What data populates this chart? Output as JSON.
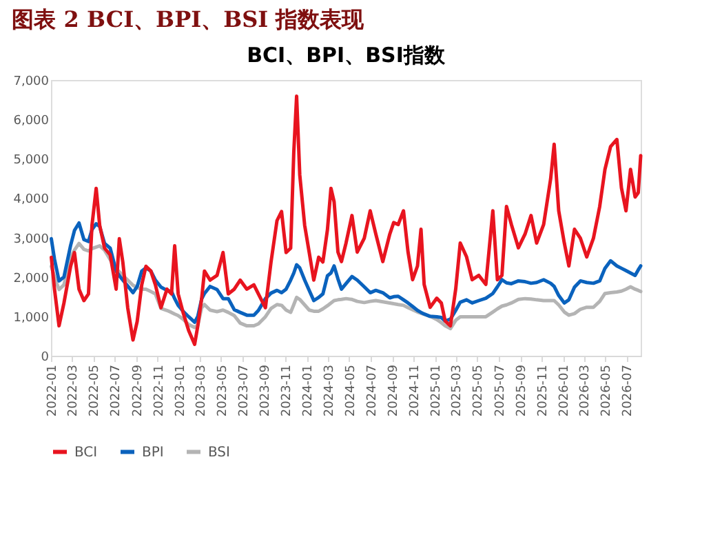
{
  "chart_data": {
    "type": "line",
    "title": "图表 2   BCI、BPI、BSI 指数表现",
    "subtitle": "BCI、BPI、BSI指数",
    "x": [
      "2022-01-02",
      "2022-01-11",
      "2022-01-24",
      "2022-02-07",
      "2022-02-26",
      "2022-03-09",
      "2022-03-22",
      "2022-04-05",
      "2022-04-18",
      "2022-04-28",
      "2022-05-10",
      "2022-05-20",
      "2022-06-03",
      "2022-06-19",
      "2022-07-06",
      "2022-07-15",
      "2022-07-25",
      "2022-08-08",
      "2022-08-23",
      "2022-09-04",
      "2022-09-17",
      "2022-09-29",
      "2022-10-13",
      "2022-10-26",
      "2022-11-11",
      "2022-11-28",
      "2022-12-11",
      "2022-12-20",
      "2022-12-30",
      "2023-01-13",
      "2023-01-29",
      "2023-02-15",
      "2023-02-24",
      "2023-03-07",
      "2023-03-15",
      "2023-03-31",
      "2023-04-20",
      "2023-05-07",
      "2023-05-22",
      "2023-06-08",
      "2023-06-25",
      "2023-07-14",
      "2023-08-03",
      "2023-08-16",
      "2023-09-05",
      "2023-09-21",
      "2023-10-08",
      "2023-10-21",
      "2023-11-03",
      "2023-11-16",
      "2023-11-25",
      "2023-12-03",
      "2023-12-12",
      "2023-12-26",
      "2024-01-08",
      "2024-01-21",
      "2024-02-04",
      "2024-02-16",
      "2024-02-29",
      "2024-03-10",
      "2024-03-19",
      "2024-03-30",
      "2024-04-09",
      "2024-04-22",
      "2024-05-09",
      "2024-05-24",
      "2024-06-13",
      "2024-06-30",
      "2024-07-16",
      "2024-08-05",
      "2024-08-25",
      "2024-09-05",
      "2024-09-18",
      "2024-10-03",
      "2024-10-16",
      "2024-10-29",
      "2024-11-12",
      "2024-11-22",
      "2024-12-01",
      "2024-12-18",
      "2025-01-06",
      "2025-01-19",
      "2025-01-30",
      "2025-02-14",
      "2025-03-01",
      "2025-03-14",
      "2025-04-01",
      "2025-04-17",
      "2025-05-06",
      "2025-05-26",
      "2025-06-15",
      "2025-06-28",
      "2025-07-11",
      "2025-07-24",
      "2025-08-07",
      "2025-08-27",
      "2025-09-15",
      "2025-10-02",
      "2025-10-18",
      "2025-11-07",
      "2025-11-27",
      "2025-12-07",
      "2025-12-20",
      "2026-01-05",
      "2026-01-18",
      "2026-02-03",
      "2026-02-20",
      "2026-03-10",
      "2026-03-29",
      "2026-04-16",
      "2026-05-01",
      "2026-05-17",
      "2026-06-04",
      "2026-06-17",
      "2026-06-30",
      "2026-07-13",
      "2026-07-26",
      "2026-08-04",
      "2026-08-11"
    ],
    "series": [
      {
        "name": "BCI",
        "color": "#e8141f",
        "values": [
          2500,
          1690,
          760,
          1340,
          2270,
          2620,
          1690,
          1400,
          1570,
          3310,
          4250,
          3310,
          2730,
          2560,
          1690,
          2970,
          2380,
          1220,
          400,
          870,
          1800,
          2270,
          2150,
          1800,
          1220,
          1690,
          1570,
          2790,
          1570,
          1100,
          640,
          290,
          760,
          1450,
          2150,
          1920,
          2040,
          2620,
          1570,
          1690,
          1920,
          1690,
          1800,
          1570,
          1220,
          2380,
          3430,
          3660,
          2620,
          2730,
          5180,
          6590,
          4590,
          3310,
          2620,
          1920,
          2500,
          2380,
          3200,
          4250,
          3910,
          2630,
          2390,
          2860,
          3560,
          2630,
          2980,
          3680,
          3090,
          2390,
          3090,
          3380,
          3330,
          3680,
          2630,
          1930,
          2280,
          3210,
          1810,
          1230,
          1460,
          1340,
          880,
          760,
          1690,
          2860,
          2510,
          1930,
          2040,
          1810,
          3680,
          1930,
          2040,
          3790,
          3330,
          2740,
          3090,
          3560,
          2860,
          3330,
          4490,
          5370,
          3680,
          2860,
          2280,
          3210,
          2980,
          2510,
          2980,
          3790,
          4730,
          5310,
          5490,
          4260,
          3680,
          4730,
          4030,
          4140,
          5080
        ]
      },
      {
        "name": "BPI",
        "color": "#0a62bd",
        "values": [
          2970,
          2450,
          1900,
          2000,
          2800,
          3180,
          3370,
          2950,
          2900,
          3200,
          3350,
          3280,
          2850,
          2730,
          2150,
          2030,
          1920,
          1770,
          1600,
          1760,
          2150,
          2230,
          2150,
          1920,
          1740,
          1660,
          1630,
          1450,
          1280,
          1130,
          990,
          850,
          1000,
          1440,
          1580,
          1760,
          1680,
          1450,
          1450,
          1170,
          1100,
          1030,
          1030,
          1150,
          1450,
          1590,
          1660,
          1600,
          1690,
          1920,
          2100,
          2310,
          2230,
          1920,
          1660,
          1400,
          1480,
          1570,
          2030,
          2100,
          2280,
          1950,
          1690,
          1830,
          2010,
          1920,
          1750,
          1600,
          1660,
          1600,
          1470,
          1500,
          1510,
          1420,
          1340,
          1250,
          1150,
          1100,
          1060,
          1000,
          990,
          970,
          880,
          930,
          1150,
          1360,
          1420,
          1340,
          1400,
          1460,
          1580,
          1750,
          1930,
          1850,
          1830,
          1900,
          1880,
          1840,
          1860,
          1930,
          1840,
          1760,
          1530,
          1340,
          1420,
          1740,
          1900,
          1860,
          1840,
          1900,
          2220,
          2410,
          2280,
          2220,
          2160,
          2100,
          2040,
          2180,
          2280
        ]
      },
      {
        "name": "BSI",
        "color": "#b4b4b4",
        "values": [
          2270,
          2000,
          1680,
          1800,
          2500,
          2680,
          2850,
          2700,
          2660,
          2720,
          2760,
          2790,
          2680,
          2440,
          2210,
          2130,
          2040,
          1920,
          1790,
          1730,
          1690,
          1690,
          1630,
          1570,
          1200,
          1150,
          1100,
          1060,
          1020,
          930,
          790,
          720,
          780,
          1220,
          1300,
          1160,
          1120,
          1160,
          1100,
          1020,
          830,
          760,
          760,
          810,
          990,
          1200,
          1300,
          1280,
          1160,
          1100,
          1300,
          1480,
          1430,
          1290,
          1160,
          1130,
          1130,
          1190,
          1270,
          1340,
          1400,
          1420,
          1430,
          1450,
          1430,
          1380,
          1350,
          1380,
          1400,
          1370,
          1340,
          1320,
          1300,
          1280,
          1220,
          1170,
          1110,
          1080,
          1050,
          1000,
          920,
          840,
          760,
          690,
          900,
          990,
          990,
          990,
          990,
          990,
          1110,
          1190,
          1260,
          1290,
          1340,
          1430,
          1450,
          1440,
          1420,
          1400,
          1400,
          1400,
          1290,
          1110,
          1030,
          1070,
          1180,
          1230,
          1230,
          1380,
          1580,
          1600,
          1620,
          1640,
          1690,
          1750,
          1690,
          1660,
          1630
        ]
      }
    ],
    "xlim": [
      "2022-01-01",
      "2026-08-11"
    ],
    "xticks": [
      "2022-01",
      "2022-03",
      "2022-05",
      "2022-07",
      "2022-09",
      "2022-11",
      "2023-01",
      "2023-03",
      "2023-05",
      "2023-07",
      "2023-09",
      "2023-11",
      "2024-01",
      "2024-03",
      "2024-05",
      "2024-07",
      "2024-09",
      "2024-11",
      "2025-01",
      "2025-03",
      "2025-05",
      "2025-07",
      "2025-09",
      "2025-11",
      "2026-01",
      "2026-03",
      "2026-05",
      "2026-07"
    ],
    "ylim": [
      0,
      7000
    ],
    "yticks": [
      {
        "value": 0,
        "label": "0"
      },
      {
        "value": 1000,
        "label": "1,000"
      },
      {
        "value": 2000,
        "label": "2,000"
      },
      {
        "value": 3000,
        "label": "3,000"
      },
      {
        "value": 4000,
        "label": "4,000"
      },
      {
        "value": 5000,
        "label": "5,000"
      },
      {
        "value": 6000,
        "label": "6,000"
      },
      {
        "value": 7000,
        "label": "7,000"
      }
    ],
    "grid": false,
    "legend": "bottom",
    "line_style": "solid",
    "marker": "none"
  }
}
